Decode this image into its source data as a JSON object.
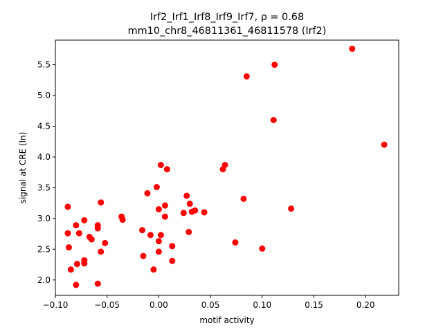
{
  "chart_data": {
    "type": "scatter",
    "title_line1": "Irf2_Irf1_Irf8_Irf9_Irf7, ρ = 0.68",
    "title_line2": "mm10_chr8_46811361_46811578 (Irf2)",
    "xlabel": "motif activity",
    "ylabel": "signal at CRE (ln)",
    "xlim": [
      -0.1,
      0.232
    ],
    "ylim": [
      1.75,
      5.9
    ],
    "xticks": [
      -0.1,
      -0.05,
      0.0,
      0.05,
      0.1,
      0.15,
      0.2
    ],
    "xtick_labels": [
      "−0.10",
      "−0.05",
      "0.00",
      "0.05",
      "0.10",
      "0.15",
      "0.20"
    ],
    "yticks": [
      2.0,
      2.5,
      3.0,
      3.5,
      4.0,
      4.5,
      5.0,
      5.5
    ],
    "ytick_labels": [
      "2.0",
      "2.5",
      "3.0",
      "3.5",
      "4.0",
      "4.5",
      "5.0",
      "5.5"
    ],
    "grid": false,
    "marker_color": "#ff0000",
    "points": [
      {
        "x": -0.088,
        "y": 3.19
      },
      {
        "x": -0.088,
        "y": 2.76
      },
      {
        "x": -0.087,
        "y": 2.53
      },
      {
        "x": -0.085,
        "y": 2.17
      },
      {
        "x": -0.08,
        "y": 2.89
      },
      {
        "x": -0.079,
        "y": 2.26
      },
      {
        "x": -0.08,
        "y": 1.92
      },
      {
        "x": -0.077,
        "y": 2.76
      },
      {
        "x": -0.072,
        "y": 2.97
      },
      {
        "x": -0.072,
        "y": 2.32
      },
      {
        "x": -0.072,
        "y": 2.27
      },
      {
        "x": -0.067,
        "y": 2.7
      },
      {
        "x": -0.065,
        "y": 2.66
      },
      {
        "x": -0.059,
        "y": 2.89
      },
      {
        "x": -0.059,
        "y": 2.84
      },
      {
        "x": -0.059,
        "y": 1.94
      },
      {
        "x": -0.056,
        "y": 3.26
      },
      {
        "x": -0.056,
        "y": 2.46
      },
      {
        "x": -0.052,
        "y": 2.6
      },
      {
        "x": -0.036,
        "y": 3.03
      },
      {
        "x": -0.035,
        "y": 2.98
      },
      {
        "x": -0.016,
        "y": 2.81
      },
      {
        "x": -0.015,
        "y": 2.39
      },
      {
        "x": -0.011,
        "y": 3.41
      },
      {
        "x": -0.008,
        "y": 2.73
      },
      {
        "x": -0.005,
        "y": 2.17
      },
      {
        "x": -0.002,
        "y": 3.51
      },
      {
        "x": 0.0,
        "y": 3.15
      },
      {
        "x": 0.0,
        "y": 2.63
      },
      {
        "x": 0.0,
        "y": 2.46
      },
      {
        "x": 0.002,
        "y": 3.87
      },
      {
        "x": 0.002,
        "y": 2.73
      },
      {
        "x": 0.006,
        "y": 3.21
      },
      {
        "x": 0.006,
        "y": 3.03
      },
      {
        "x": 0.008,
        "y": 3.8
      },
      {
        "x": 0.013,
        "y": 2.55
      },
      {
        "x": 0.013,
        "y": 2.31
      },
      {
        "x": 0.024,
        "y": 3.09
      },
      {
        "x": 0.027,
        "y": 3.37
      },
      {
        "x": 0.029,
        "y": 2.78
      },
      {
        "x": 0.03,
        "y": 3.24
      },
      {
        "x": 0.032,
        "y": 3.11
      },
      {
        "x": 0.035,
        "y": 3.13
      },
      {
        "x": 0.044,
        "y": 3.1
      },
      {
        "x": 0.062,
        "y": 3.8
      },
      {
        "x": 0.064,
        "y": 3.87
      },
      {
        "x": 0.074,
        "y": 2.61
      },
      {
        "x": 0.082,
        "y": 3.32
      },
      {
        "x": 0.085,
        "y": 5.31
      },
      {
        "x": 0.1,
        "y": 2.51
      },
      {
        "x": 0.111,
        "y": 4.6
      },
      {
        "x": 0.112,
        "y": 5.5
      },
      {
        "x": 0.128,
        "y": 3.16
      },
      {
        "x": 0.187,
        "y": 5.76
      },
      {
        "x": 0.218,
        "y": 4.2
      }
    ]
  }
}
